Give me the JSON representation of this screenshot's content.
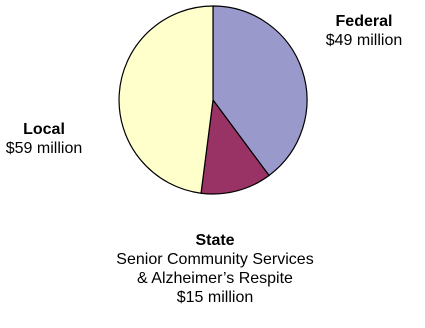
{
  "chart_data": {
    "type": "pie",
    "slices": [
      {
        "name": "Federal",
        "value": 49,
        "value_label": "$49 million",
        "color": "#9999CC",
        "description_lines": []
      },
      {
        "name": "State",
        "value": 15,
        "value_label": "$15 million",
        "color": "#993366",
        "description_lines": [
          "Senior Community Services",
          "& Alzheimer’s Respite"
        ]
      },
      {
        "name": "Local",
        "value": 59,
        "value_label": "$59 million",
        "color": "#FFFFCC",
        "description_lines": []
      }
    ],
    "start_angle_deg": 0,
    "direction": "clockwise",
    "legend": "none",
    "data_labels": "outside"
  }
}
